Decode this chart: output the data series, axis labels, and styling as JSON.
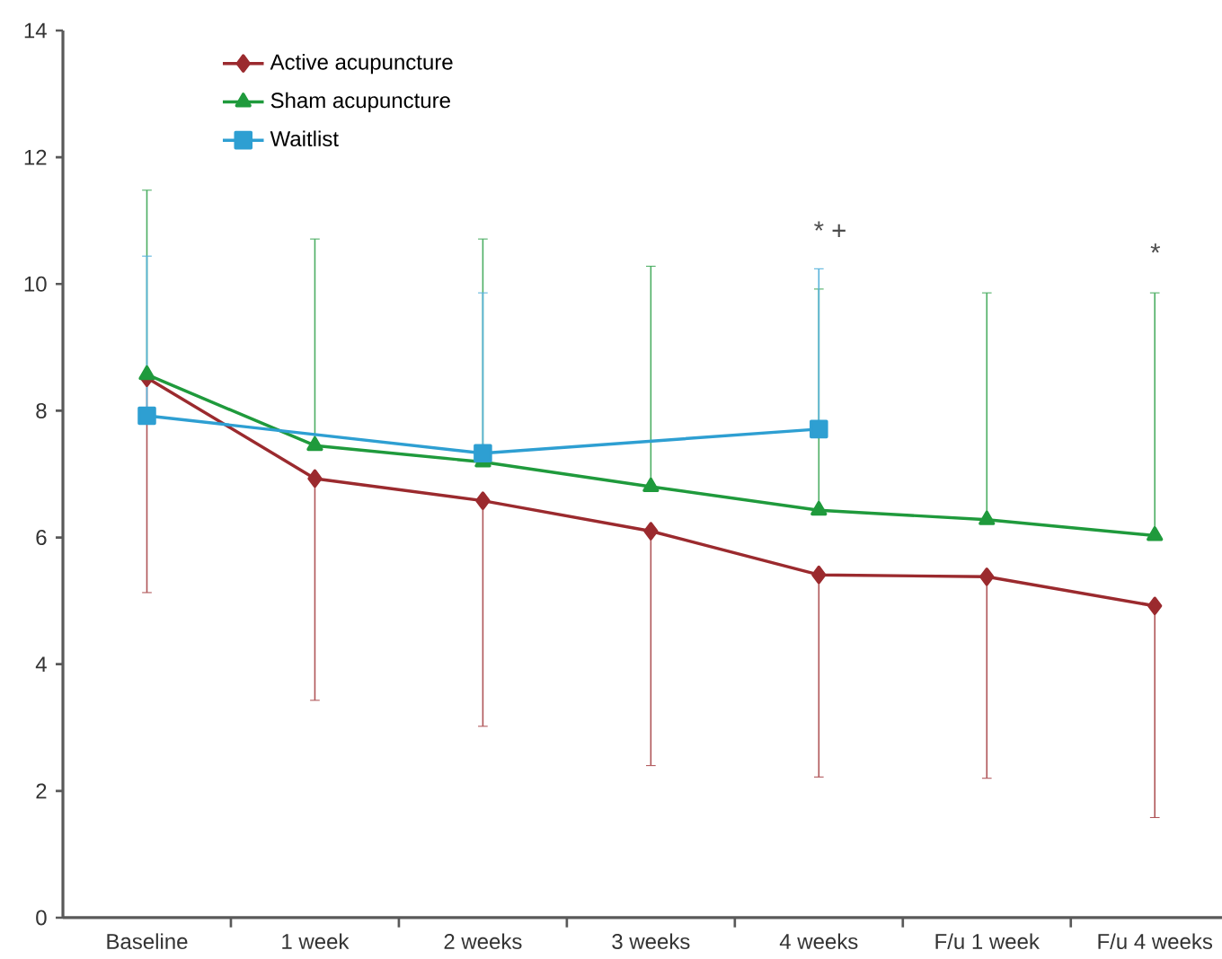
{
  "chart_data": {
    "type": "line",
    "categories": [
      "Baseline",
      "1 week",
      "2 weeks",
      "3 weeks",
      "4 weeks",
      "F/u 1 week",
      "F/u 4 weeks"
    ],
    "series": [
      {
        "name": "Active acupuncture",
        "color": "#9b2a2e",
        "marker": "diamond",
        "values": [
          8.52,
          6.93,
          6.58,
          6.1,
          5.41,
          5.38,
          4.92
        ],
        "errors": [
          [
            5.13,
            8.52
          ],
          [
            3.43,
            6.93
          ],
          [
            3.02,
            6.58
          ],
          [
            2.4,
            6.1
          ],
          [
            2.22,
            5.41
          ],
          [
            2.2,
            5.38
          ],
          [
            1.58,
            4.92
          ]
        ]
      },
      {
        "name": "Sham acupuncture",
        "color": "#1f9a3c",
        "marker": "triangle",
        "values": [
          8.57,
          7.45,
          7.19,
          6.8,
          6.43,
          6.28,
          6.03
        ],
        "errors": [
          [
            8.57,
            11.48
          ],
          [
            7.45,
            10.71
          ],
          [
            7.19,
            10.71
          ],
          [
            6.8,
            10.28
          ],
          [
            6.43,
            9.92
          ],
          [
            6.28,
            9.86
          ],
          [
            6.03,
            9.86
          ]
        ]
      },
      {
        "name": "Waitlist",
        "color": "#2e9fd2",
        "marker": "square",
        "values": [
          7.92,
          null,
          7.33,
          null,
          7.71,
          null,
          null
        ],
        "errors": [
          [
            7.92,
            10.44
          ],
          null,
          [
            7.33,
            9.86
          ],
          null,
          [
            7.71,
            10.24
          ],
          null,
          null
        ]
      }
    ],
    "ylim": [
      0,
      14
    ],
    "yticks": [
      0,
      2,
      4,
      6,
      8,
      10,
      12,
      14
    ],
    "annotations": [
      "* +",
      "*"
    ],
    "legend": "top left",
    "grid": false
  }
}
